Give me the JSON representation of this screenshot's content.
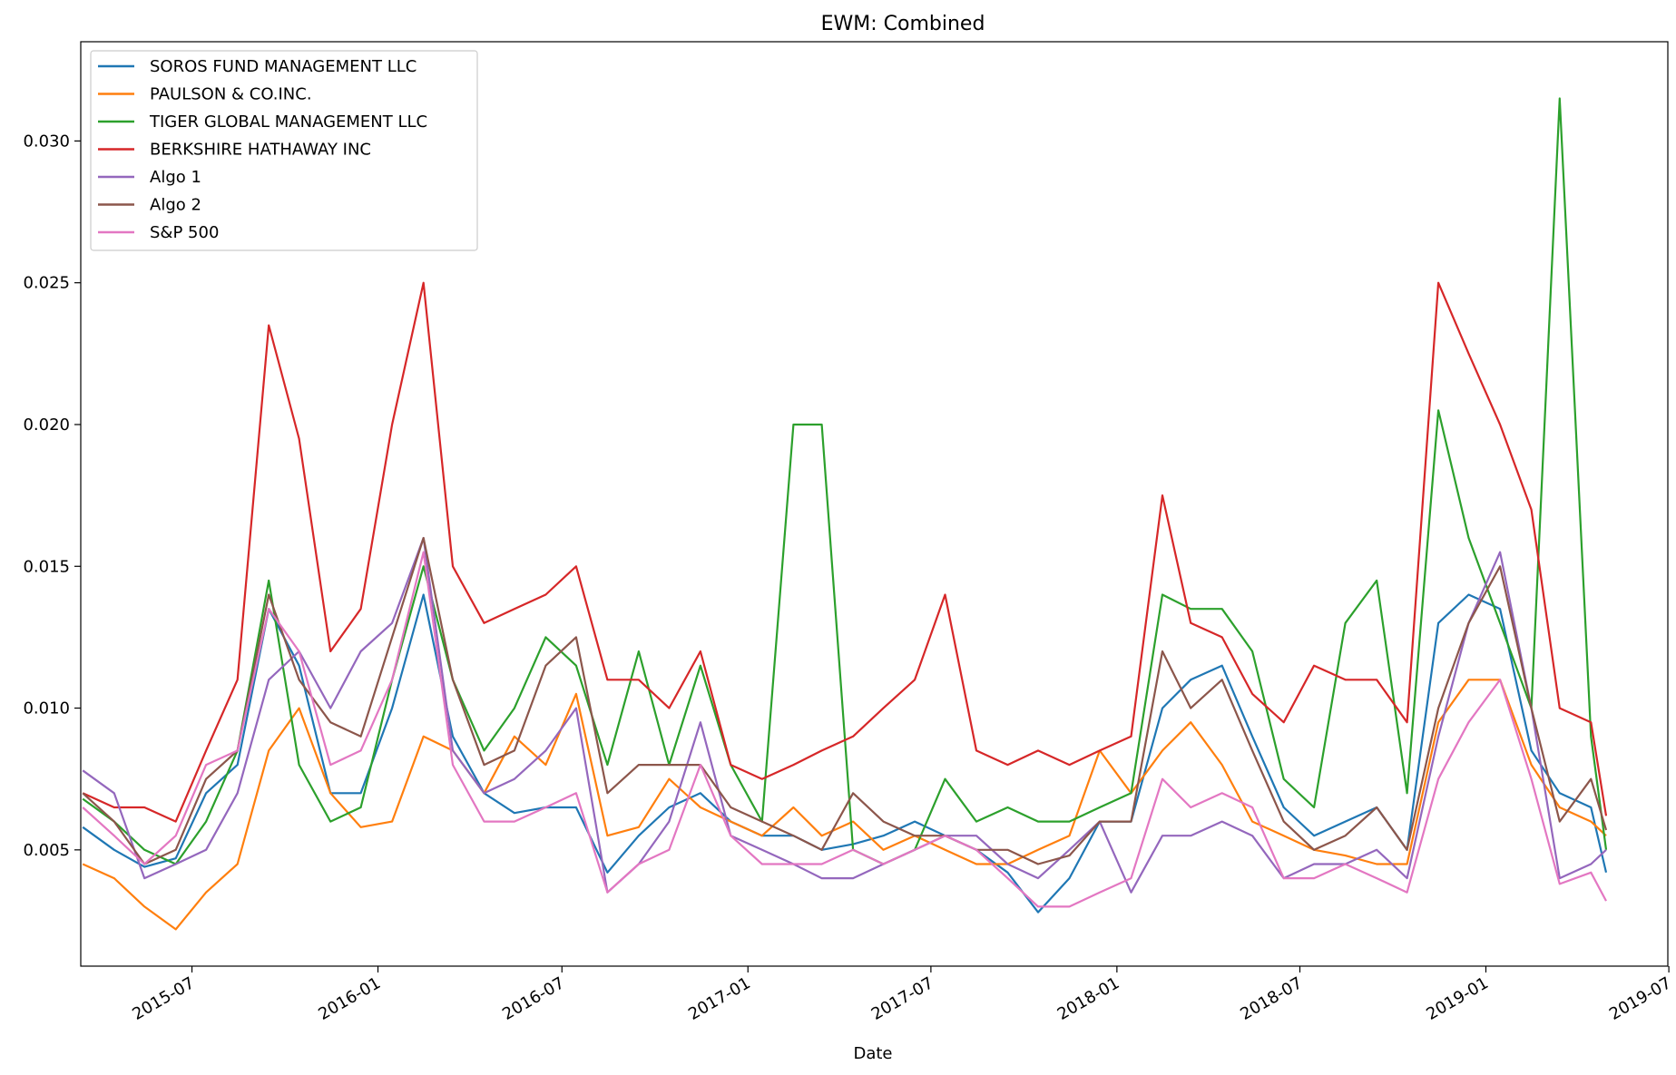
{
  "chart_data": {
    "type": "line",
    "title": "EWM: Combined",
    "xlabel": "Date",
    "ylabel": "",
    "ylim": [
      0.0009,
      0.0335
    ],
    "xlim": [
      "2015-03-13",
      "2019-06-30"
    ],
    "grid": false,
    "legend_position": "top-left",
    "y_ticks": [
      "0.005",
      "0.010",
      "0.015",
      "0.020",
      "0.025",
      "0.030"
    ],
    "x_ticks": [
      "2015-07",
      "2016-01",
      "2016-07",
      "2017-01",
      "2017-07",
      "2018-01",
      "2018-07",
      "2019-01",
      "2019-07"
    ],
    "x": [
      "2015-03-15",
      "2015-04-15",
      "2015-05-15",
      "2015-06-15",
      "2015-07-15",
      "2015-08-15",
      "2015-09-15",
      "2015-10-15",
      "2015-11-15",
      "2015-12-15",
      "2016-01-15",
      "2016-02-15",
      "2016-03-15",
      "2016-04-15",
      "2016-05-15",
      "2016-06-15",
      "2016-07-15",
      "2016-08-15",
      "2016-09-15",
      "2016-10-15",
      "2016-11-15",
      "2016-12-15",
      "2017-01-15",
      "2017-02-15",
      "2017-03-15",
      "2017-04-15",
      "2017-05-15",
      "2017-06-15",
      "2017-07-15",
      "2017-08-15",
      "2017-09-15",
      "2017-10-15",
      "2017-11-15",
      "2017-12-15",
      "2018-01-15",
      "2018-02-15",
      "2018-03-15",
      "2018-04-15",
      "2018-05-15",
      "2018-06-15",
      "2018-07-15",
      "2018-08-15",
      "2018-09-15",
      "2018-10-15",
      "2018-11-15",
      "2018-12-15",
      "2019-01-15",
      "2019-02-15",
      "2019-03-15",
      "2019-04-15",
      "2019-04-30"
    ],
    "series": [
      {
        "name": "SOROS FUND MANAGEMENT LLC",
        "color": "#1f77b4",
        "values": [
          0.0058,
          0.005,
          0.0044,
          0.0047,
          0.007,
          0.008,
          0.0135,
          0.0115,
          0.007,
          0.007,
          0.01,
          0.014,
          0.009,
          0.007,
          0.0063,
          0.0065,
          0.0065,
          0.0042,
          0.0055,
          0.0065,
          0.007,
          0.006,
          0.0055,
          0.0055,
          0.005,
          0.0052,
          0.0055,
          0.006,
          0.0055,
          0.005,
          0.0042,
          0.0028,
          0.004,
          0.006,
          0.006,
          0.01,
          0.011,
          0.0115,
          0.009,
          0.0065,
          0.0055,
          0.006,
          0.0065,
          0.005,
          0.013,
          0.014,
          0.0135,
          0.0085,
          0.007,
          0.0065,
          0.0042
        ]
      },
      {
        "name": "PAULSON & CO.INC.",
        "color": "#ff7f0e",
        "values": [
          0.0045,
          0.004,
          0.003,
          0.0022,
          0.0035,
          0.0045,
          0.0085,
          0.01,
          0.007,
          0.0058,
          0.006,
          0.009,
          0.0085,
          0.007,
          0.009,
          0.008,
          0.0105,
          0.0055,
          0.0058,
          0.0075,
          0.0065,
          0.006,
          0.0055,
          0.0065,
          0.0055,
          0.006,
          0.005,
          0.0055,
          0.005,
          0.0045,
          0.0045,
          0.005,
          0.0055,
          0.0085,
          0.007,
          0.0085,
          0.0095,
          0.008,
          0.006,
          0.0055,
          0.005,
          0.0048,
          0.0045,
          0.0045,
          0.0095,
          0.011,
          0.011,
          0.008,
          0.0065,
          0.006,
          0.0055
        ]
      },
      {
        "name": "TIGER GLOBAL MANAGEMENT LLC",
        "color": "#2ca02c",
        "values": [
          0.0068,
          0.006,
          0.005,
          0.0045,
          0.006,
          0.0085,
          0.0145,
          0.008,
          0.006,
          0.0065,
          0.011,
          0.015,
          0.011,
          0.0085,
          0.01,
          0.0125,
          0.0115,
          0.008,
          0.012,
          0.008,
          0.0115,
          0.008,
          0.006,
          0.02,
          0.02,
          0.005,
          0.0045,
          0.005,
          0.0075,
          0.006,
          0.0065,
          0.006,
          0.006,
          0.0065,
          0.007,
          0.014,
          0.0135,
          0.0135,
          0.012,
          0.0075,
          0.0065,
          0.013,
          0.0145,
          0.007,
          0.0205,
          0.016,
          0.013,
          0.01,
          0.0315,
          0.009,
          0.005
        ]
      },
      {
        "name": "BERKSHIRE HATHAWAY INC",
        "color": "#d62728",
        "values": [
          0.007,
          0.0065,
          0.0065,
          0.006,
          0.0085,
          0.011,
          0.0235,
          0.0195,
          0.012,
          0.0135,
          0.02,
          0.025,
          0.015,
          0.013,
          0.0135,
          0.014,
          0.015,
          0.011,
          0.011,
          0.01,
          0.012,
          0.008,
          0.0075,
          0.008,
          0.0085,
          0.009,
          0.01,
          0.011,
          0.014,
          0.0085,
          0.008,
          0.0085,
          0.008,
          0.0085,
          0.009,
          0.0175,
          0.013,
          0.0125,
          0.0105,
          0.0095,
          0.0115,
          0.011,
          0.011,
          0.0095,
          0.025,
          0.0225,
          0.02,
          0.017,
          0.01,
          0.0095,
          0.0062
        ]
      },
      {
        "name": "Algo 1",
        "color": "#9467bd",
        "values": [
          0.0078,
          0.007,
          0.004,
          0.0045,
          0.005,
          0.007,
          0.011,
          0.012,
          0.01,
          0.012,
          0.013,
          0.016,
          0.0085,
          0.007,
          0.0075,
          0.0085,
          0.01,
          0.0035,
          0.0045,
          0.006,
          0.0095,
          0.0055,
          0.005,
          0.0045,
          0.004,
          0.004,
          0.0045,
          0.005,
          0.0055,
          0.0055,
          0.0045,
          0.004,
          0.005,
          0.006,
          0.0035,
          0.0055,
          0.0055,
          0.006,
          0.0055,
          0.004,
          0.0045,
          0.0045,
          0.005,
          0.004,
          0.009,
          0.013,
          0.0155,
          0.01,
          0.004,
          0.0045,
          0.005
        ]
      },
      {
        "name": "Algo 2",
        "color": "#8c564b",
        "values": [
          0.007,
          0.006,
          0.0045,
          0.005,
          0.0075,
          0.0085,
          0.014,
          0.011,
          0.0095,
          0.009,
          0.0125,
          0.016,
          0.011,
          0.008,
          0.0085,
          0.0115,
          0.0125,
          0.007,
          0.008,
          0.008,
          0.008,
          0.0065,
          0.006,
          0.0055,
          0.005,
          0.007,
          0.006,
          0.0055,
          0.0055,
          0.005,
          0.005,
          0.0045,
          0.0048,
          0.006,
          0.006,
          0.012,
          0.01,
          0.011,
          0.0085,
          0.006,
          0.005,
          0.0055,
          0.0065,
          0.005,
          0.01,
          0.013,
          0.015,
          0.01,
          0.006,
          0.0075,
          0.0057
        ]
      },
      {
        "name": "S&P 500",
        "color": "#e377c2",
        "values": [
          0.0065,
          0.0055,
          0.0045,
          0.0055,
          0.008,
          0.0085,
          0.0135,
          0.012,
          0.008,
          0.0085,
          0.011,
          0.0155,
          0.008,
          0.006,
          0.006,
          0.0065,
          0.007,
          0.0035,
          0.0045,
          0.005,
          0.008,
          0.0055,
          0.0045,
          0.0045,
          0.0045,
          0.005,
          0.0045,
          0.005,
          0.0055,
          0.005,
          0.004,
          0.003,
          0.003,
          0.0035,
          0.004,
          0.0075,
          0.0065,
          0.007,
          0.0065,
          0.004,
          0.004,
          0.0045,
          0.004,
          0.0035,
          0.0075,
          0.0095,
          0.011,
          0.0075,
          0.0038,
          0.0042,
          0.0032
        ]
      }
    ]
  }
}
